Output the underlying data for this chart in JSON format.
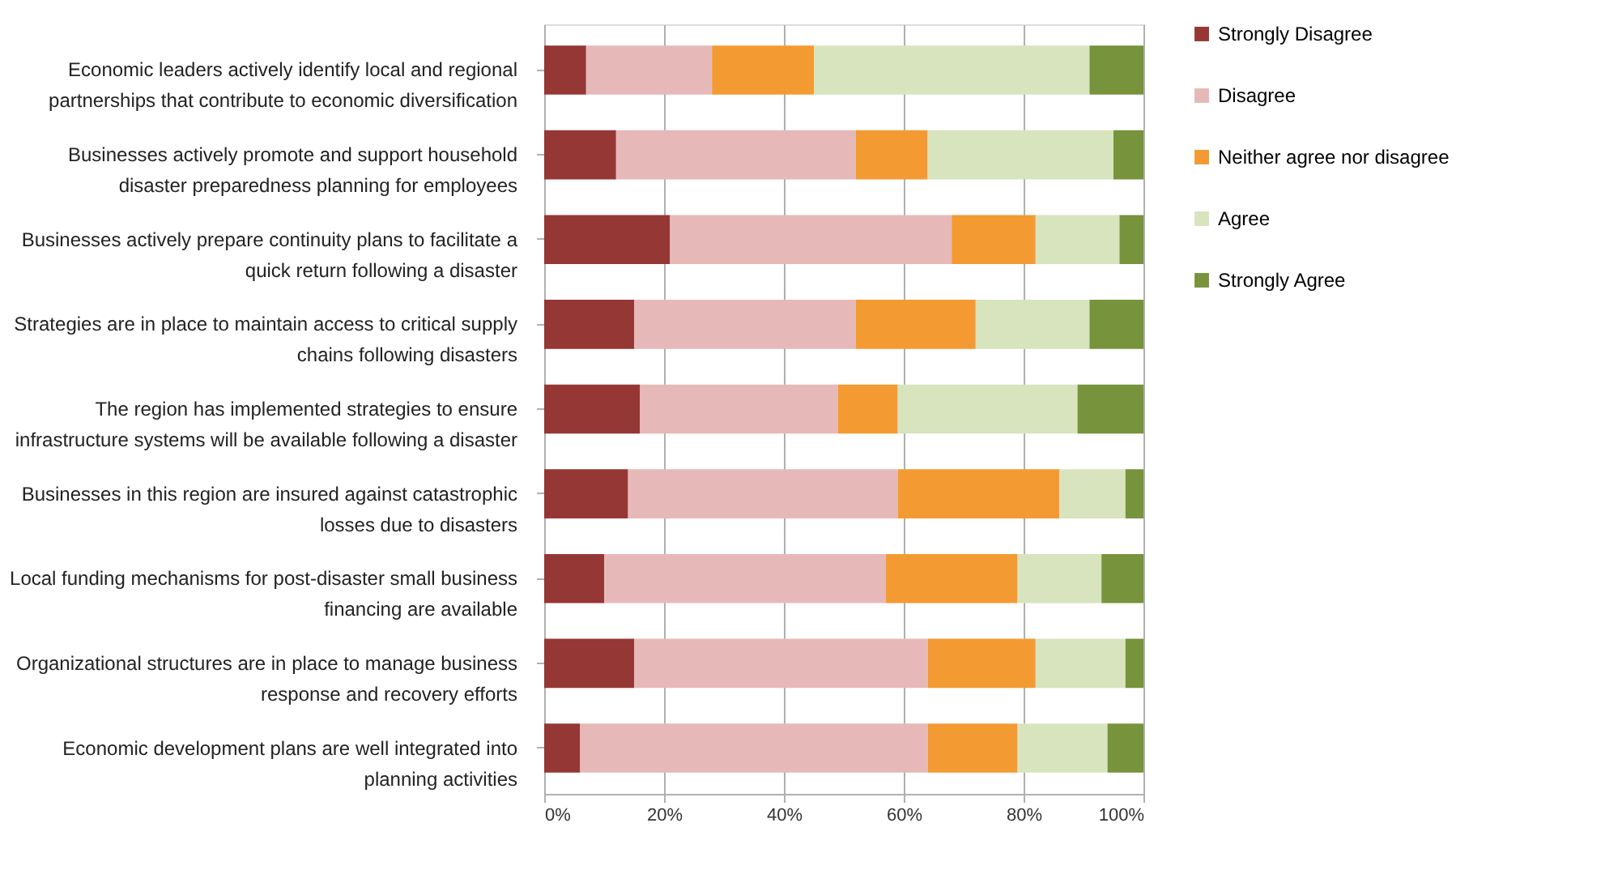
{
  "chart_data": {
    "type": "bar",
    "orientation": "horizontal",
    "stacked": true,
    "categories": [
      "Economic leaders actively identify local and regional\npartnerships that contribute to economic diversification",
      "Businesses actively promote and support household\ndisaster preparedness planning for employees",
      "Businesses actively prepare continuity plans to facilitate a\nquick return following a disaster",
      "Strategies are in place to maintain access to critical supply\nchains following disasters",
      "The region has implemented strategies to ensure\ninfrastructure systems will be available following a disaster",
      "Businesses in this region are insured against catastrophic\nlosses due to disasters",
      "Local funding mechanisms for post-disaster small business\nfinancing are available",
      "Organizational structures are in place to manage business\nresponse and recovery efforts",
      "Economic development plans are well integrated into\nplanning activities"
    ],
    "series": [
      {
        "name": "Strongly Disagree",
        "color": "#953735",
        "values": [
          7,
          12,
          21,
          15,
          16,
          14,
          10,
          15,
          6
        ]
      },
      {
        "name": "Disagree",
        "color": "#e6b9b8",
        "values": [
          21,
          40,
          47,
          37,
          33,
          45,
          47,
          49,
          58
        ]
      },
      {
        "name": "Neither agree nor disagree",
        "color": "#f39a33",
        "values": [
          17,
          12,
          14,
          20,
          10,
          27,
          22,
          18,
          15
        ]
      },
      {
        "name": "Agree",
        "color": "#d7e4bd",
        "values": [
          46,
          31,
          14,
          19,
          30,
          11,
          14,
          15,
          15
        ]
      },
      {
        "name": "Strongly Agree",
        "color": "#77933c",
        "values": [
          9,
          5,
          4,
          9,
          11,
          3,
          7,
          3,
          6
        ]
      }
    ],
    "xlim": [
      0,
      100
    ],
    "xticks": [
      {
        "value": 0,
        "label": "0%"
      },
      {
        "value": 20,
        "label": "20%"
      },
      {
        "value": 40,
        "label": "40%"
      },
      {
        "value": 60,
        "label": "60%"
      },
      {
        "value": 80,
        "label": "80%"
      },
      {
        "value": 100,
        "label": "100%"
      }
    ],
    "grid": "x",
    "legend": "right"
  }
}
